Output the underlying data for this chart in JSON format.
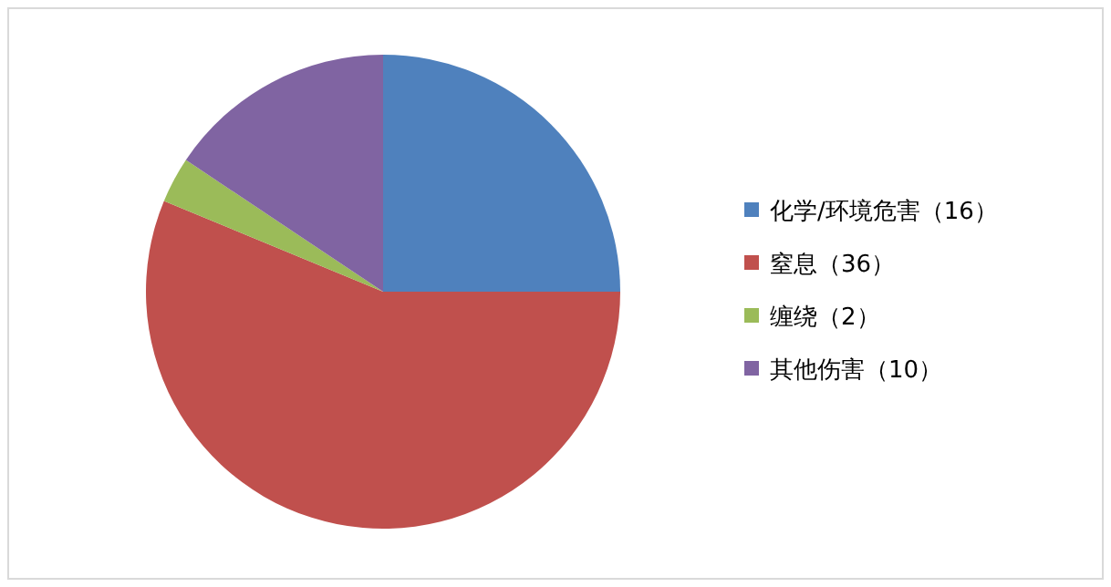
{
  "chart_data": {
    "type": "pie",
    "categories": [
      "化学/环境危害（16）",
      "窒息（36）",
      "缠绕（2）",
      "其他伤害（10）"
    ],
    "values": [
      16,
      36,
      2,
      10
    ],
    "colors": [
      "#4f81bd",
      "#c0504d",
      "#9bbb59",
      "#8064a2"
    ],
    "legend": "right"
  }
}
